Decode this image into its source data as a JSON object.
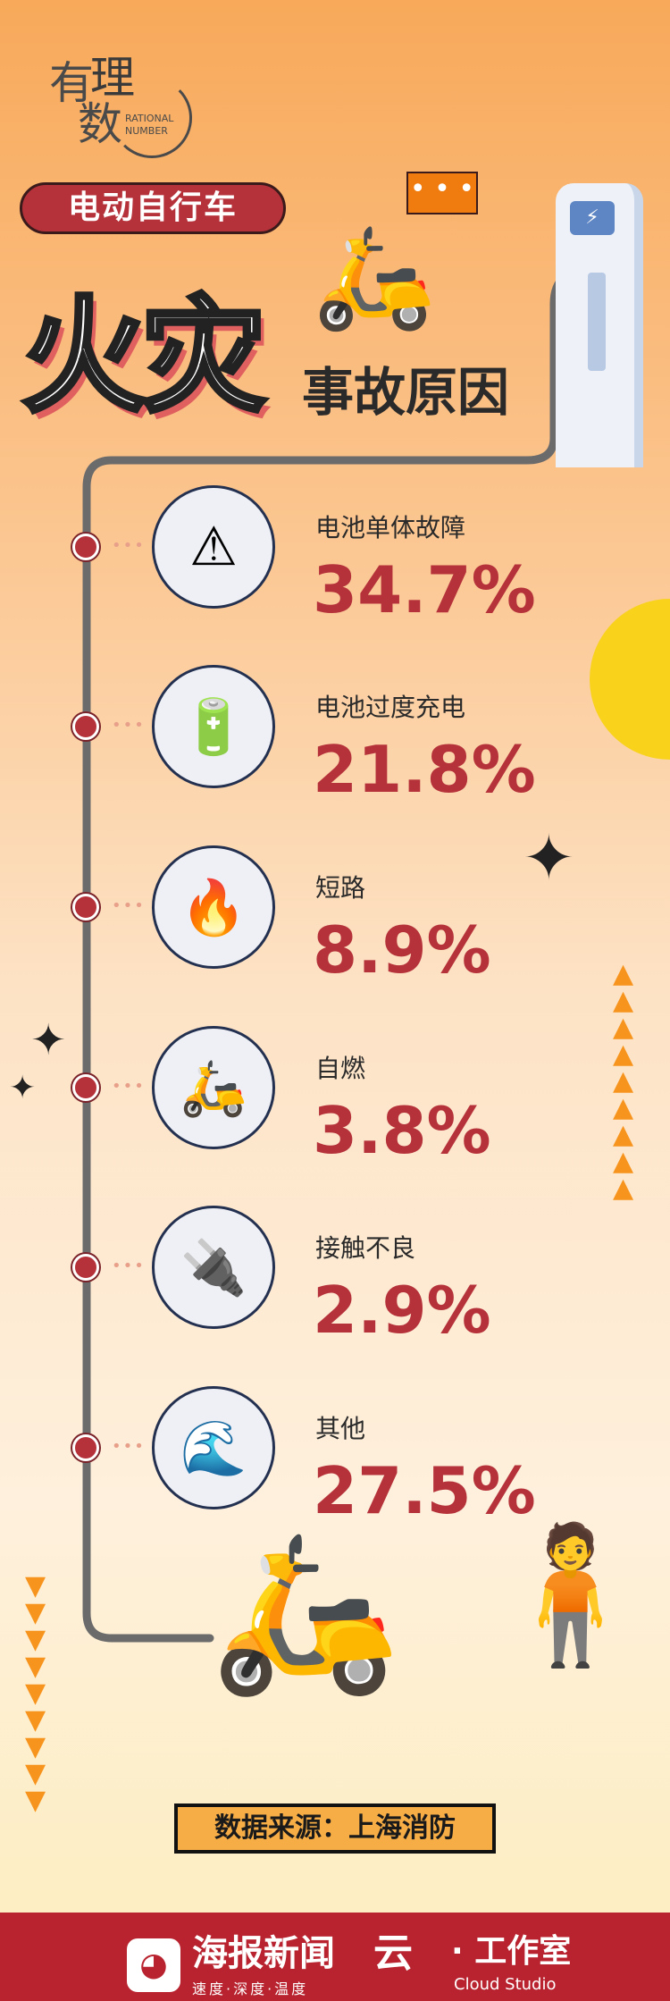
{
  "logo": {
    "cn_1": "有",
    "cn_2": "理",
    "cn_3": "数",
    "en": "RATIONAL NUMBER"
  },
  "header": {
    "badge": "电动自行车",
    "title": "火灾",
    "subtitle": "事故原因",
    "bubble": "• • •"
  },
  "charger_icon": "lightning-icon",
  "items": [
    {
      "label": "电池单体故障",
      "value": "34.7%",
      "icon": "⚠"
    },
    {
      "label": "电池过度充电",
      "value": "21.8%",
      "icon": "🔋"
    },
    {
      "label": "短路",
      "value": "8.9%",
      "icon": "🔥"
    },
    {
      "label": "自燃",
      "value": "3.8%",
      "icon": "🛵"
    },
    {
      "label": "接触不良",
      "value": "2.9%",
      "icon": "🔌"
    },
    {
      "label": "其他",
      "value": "27.5%",
      "icon": "🌊"
    }
  ],
  "source": "数据来源：上海消防",
  "footer": {
    "app_name": "海报新闻",
    "slogan": "速度·深度·温度",
    "studio_mark": "云",
    "studio": "· 工作室",
    "studio_en": "Cloud Studio"
  },
  "colors": {
    "accent": "#b6323a",
    "footer": "#b8232f",
    "source_bg": "#f7ad46"
  }
}
